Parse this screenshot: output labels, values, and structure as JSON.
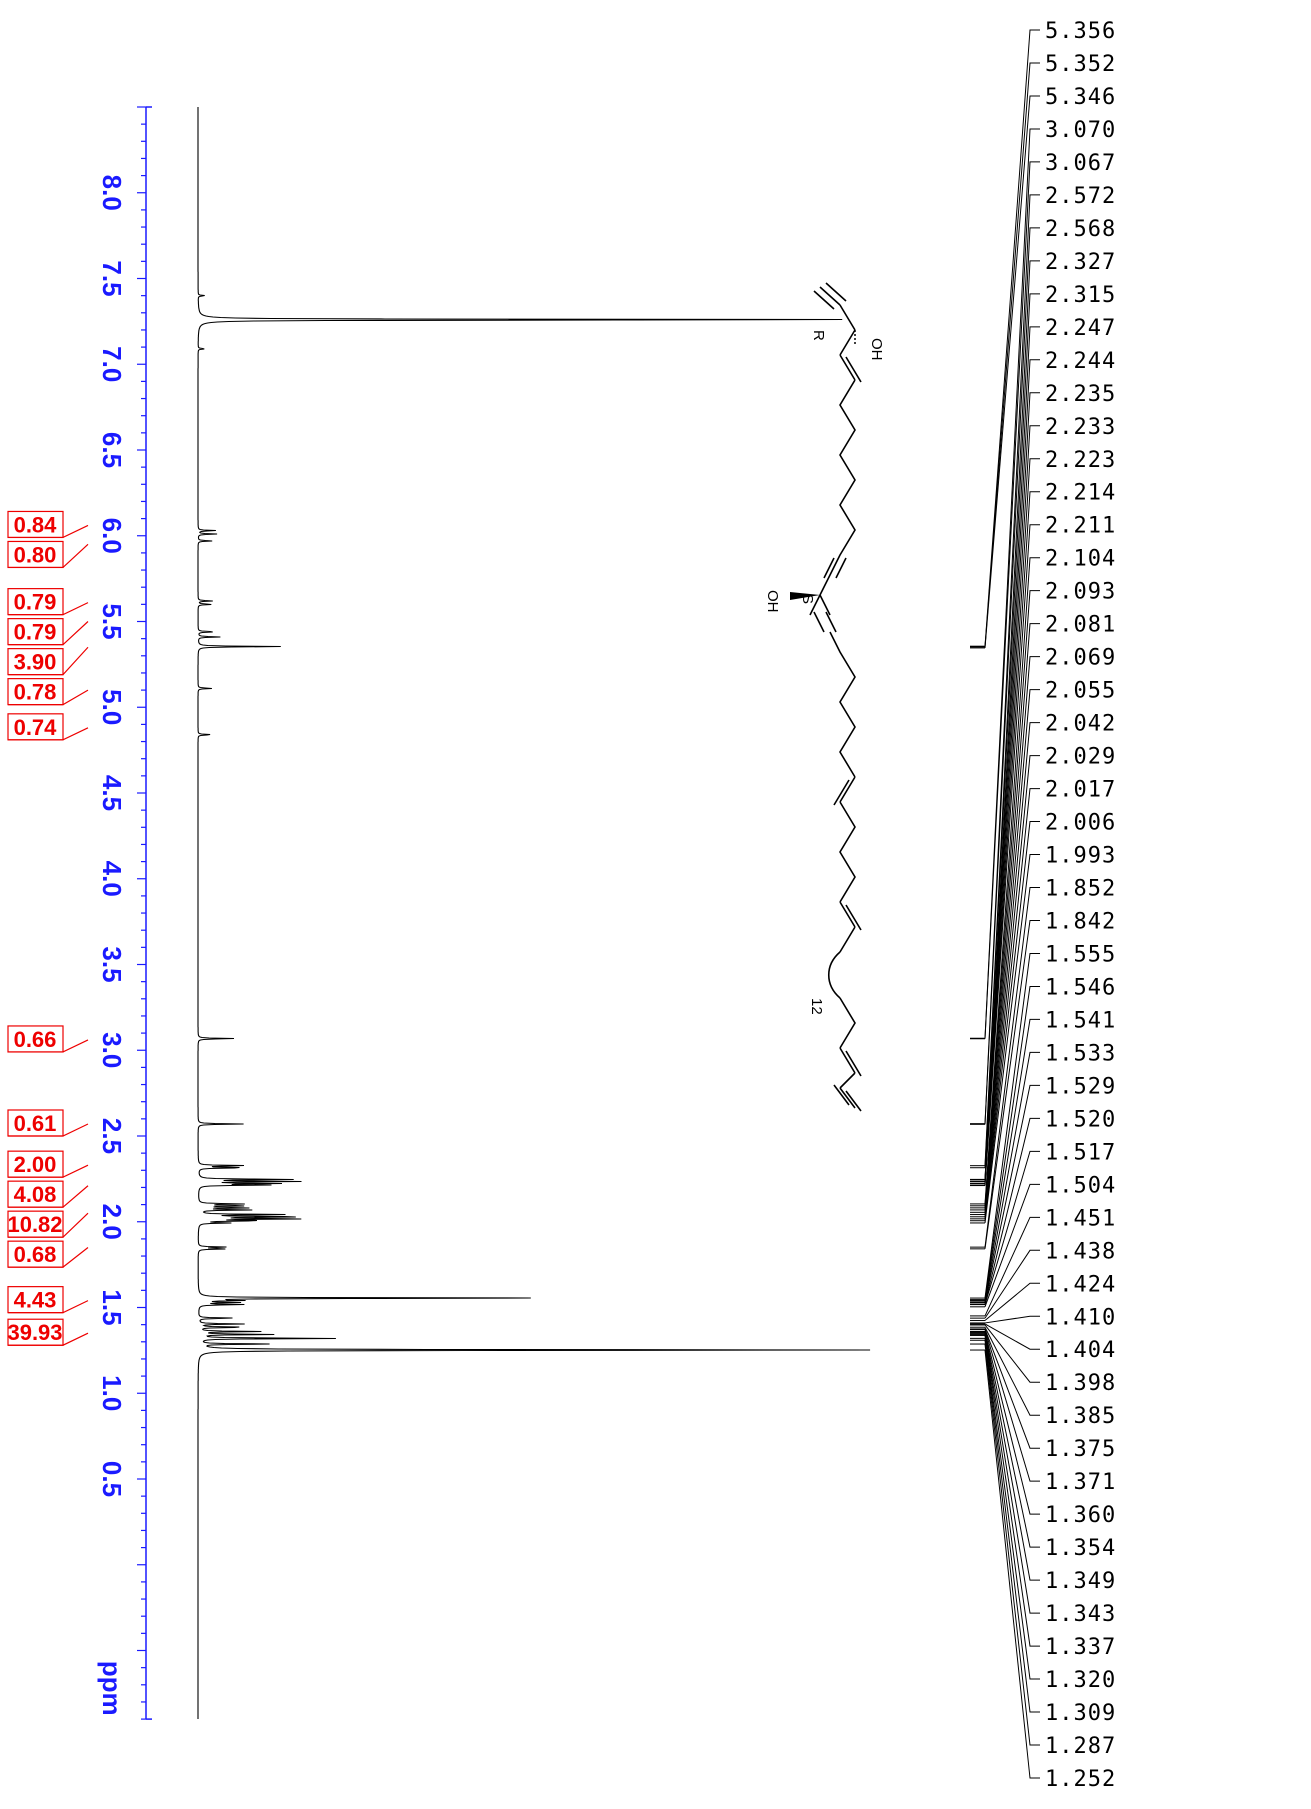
{
  "chart_data": {
    "type": "line",
    "orientation": "rotated-vertical",
    "xlabel": "ppm",
    "axis": {
      "range_ppm": [
        -0.9,
        8.5
      ],
      "ticks": [
        "8.0",
        "7.5",
        "7.0",
        "6.5",
        "6.0",
        "5.5",
        "5.0",
        "4.5",
        "4.0",
        "3.5",
        "3.0",
        "2.5",
        "2.0",
        "1.5",
        "1.0",
        "0.5"
      ],
      "tick_values": [
        8.0,
        7.5,
        7.0,
        6.5,
        6.0,
        5.5,
        5.0,
        4.5,
        4.0,
        3.5,
        3.0,
        2.5,
        2.0,
        1.5,
        1.0,
        0.5
      ]
    },
    "peaks": [
      {
        "ppm": 7.26,
        "height": 1.0
      },
      {
        "ppm": 7.4,
        "height": 0.01
      },
      {
        "ppm": 7.09,
        "height": 0.01
      },
      {
        "ppm": 6.03,
        "height": 0.025
      },
      {
        "ppm": 6.01,
        "height": 0.025
      },
      {
        "ppm": 5.97,
        "height": 0.02
      },
      {
        "ppm": 5.62,
        "height": 0.02
      },
      {
        "ppm": 5.6,
        "height": 0.02
      },
      {
        "ppm": 5.44,
        "height": 0.025
      },
      {
        "ppm": 5.41,
        "height": 0.03
      },
      {
        "ppm": 5.354,
        "height": 0.11
      },
      {
        "ppm": 5.11,
        "height": 0.02
      },
      {
        "ppm": 4.84,
        "height": 0.02
      },
      {
        "ppm": 3.068,
        "height": 0.05
      },
      {
        "ppm": 2.57,
        "height": 0.06
      },
      {
        "ppm": 2.327,
        "height": 0.07
      },
      {
        "ppm": 2.315,
        "height": 0.07
      },
      {
        "ppm": 2.247,
        "height": 0.13
      },
      {
        "ppm": 2.235,
        "height": 0.13
      },
      {
        "ppm": 2.223,
        "height": 0.1
      },
      {
        "ppm": 2.214,
        "height": 0.09
      },
      {
        "ppm": 2.104,
        "height": 0.06
      },
      {
        "ppm": 2.093,
        "height": 0.07
      },
      {
        "ppm": 2.081,
        "height": 0.07
      },
      {
        "ppm": 2.069,
        "height": 0.07
      },
      {
        "ppm": 2.042,
        "height": 0.11
      },
      {
        "ppm": 2.029,
        "height": 0.16
      },
      {
        "ppm": 2.017,
        "height": 0.15
      },
      {
        "ppm": 2.006,
        "height": 0.09
      },
      {
        "ppm": 1.993,
        "height": 0.04
      },
      {
        "ppm": 1.852,
        "height": 0.04
      },
      {
        "ppm": 1.842,
        "height": 0.04
      },
      {
        "ppm": 1.555,
        "height": 0.45
      },
      {
        "ppm": 1.541,
        "height": 0.05
      },
      {
        "ppm": 1.529,
        "height": 0.05
      },
      {
        "ppm": 1.517,
        "height": 0.06
      },
      {
        "ppm": 1.438,
        "height": 0.05
      },
      {
        "ppm": 1.404,
        "height": 0.06
      },
      {
        "ppm": 1.385,
        "height": 0.07
      },
      {
        "ppm": 1.36,
        "height": 0.08
      },
      {
        "ppm": 1.343,
        "height": 0.1
      },
      {
        "ppm": 1.32,
        "height": 0.2
      },
      {
        "ppm": 1.287,
        "height": 0.09
      },
      {
        "ppm": 1.252,
        "height": 0.89
      }
    ],
    "integrals": [
      {
        "label": "0.84",
        "ppm": 6.06
      },
      {
        "label": "0.80",
        "ppm": 5.95
      },
      {
        "label": "0.79",
        "ppm": 5.61
      },
      {
        "label": "0.79",
        "ppm": 5.5
      },
      {
        "label": "3.90",
        "ppm": 5.35
      },
      {
        "label": "0.78",
        "ppm": 5.1
      },
      {
        "label": "0.74",
        "ppm": 4.88
      },
      {
        "label": "0.66",
        "ppm": 3.06
      },
      {
        "label": "0.61",
        "ppm": 2.57
      },
      {
        "label": "2.00",
        "ppm": 2.33
      },
      {
        "label": "4.08",
        "ppm": 2.21
      },
      {
        "label": "10.82",
        "ppm": 2.05
      },
      {
        "label": "0.68",
        "ppm": 1.85
      },
      {
        "label": "4.43",
        "ppm": 1.54
      },
      {
        "label": "39.93",
        "ppm": 1.35
      }
    ],
    "peak_list": [
      "5.356",
      "5.352",
      "5.346",
      "3.070",
      "3.067",
      "2.572",
      "2.568",
      "2.327",
      "2.315",
      "2.247",
      "2.244",
      "2.235",
      "2.233",
      "2.223",
      "2.214",
      "2.211",
      "2.104",
      "2.093",
      "2.081",
      "2.069",
      "2.055",
      "2.042",
      "2.029",
      "2.017",
      "2.006",
      "1.993",
      "1.852",
      "1.842",
      "1.555",
      "1.546",
      "1.541",
      "1.533",
      "1.529",
      "1.520",
      "1.517",
      "1.504",
      "1.451",
      "1.438",
      "1.424",
      "1.410",
      "1.404",
      "1.398",
      "1.385",
      "1.375",
      "1.371",
      "1.360",
      "1.354",
      "1.349",
      "1.343",
      "1.337",
      "1.320",
      "1.309",
      "1.287",
      "1.252"
    ],
    "structure_labels": {
      "oh_top": "OH",
      "r_label": "R",
      "oh_mid": "OH",
      "s_label": "S",
      "chain_count": "12"
    },
    "colors": {
      "axis": "#1a1aff",
      "integral": "#ee0000",
      "spectrum": "#000000"
    }
  }
}
